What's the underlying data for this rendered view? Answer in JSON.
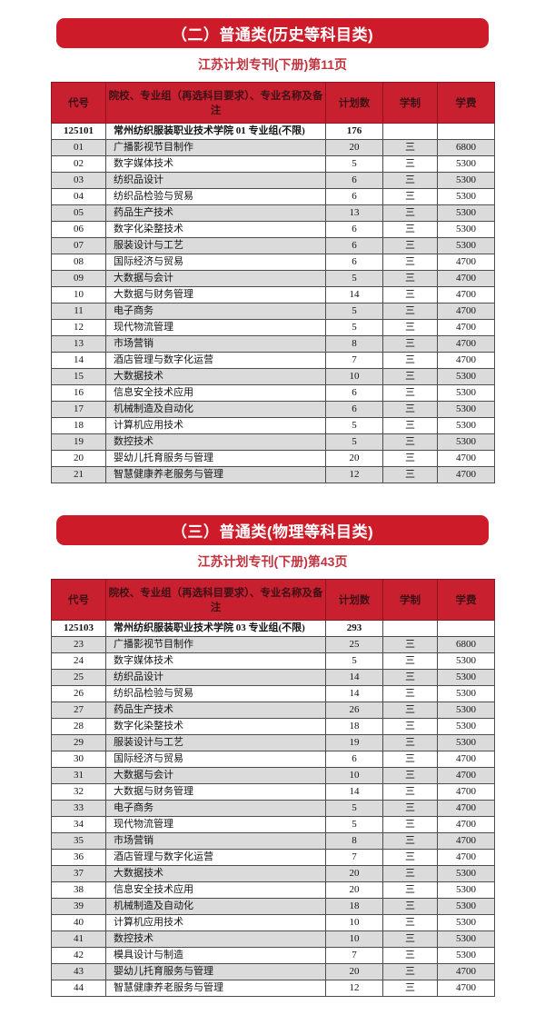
{
  "colors": {
    "banner_red": "#ce1b2a",
    "header_red": "#c8202f",
    "header_text": "#3d1016",
    "subtitle_red": "#c2323e",
    "row_gray": "#dbdbdb",
    "row_white": "#ffffff"
  },
  "sections": [
    {
      "banner": "（二）普通类(历史等科目类)",
      "subtitle": "江苏计划专刊(下册)第11页",
      "columns": [
        "代号",
        "院校、专业组（再选科目要求）、专业名称及备注",
        "计划数",
        "学制",
        "学费"
      ],
      "group_row": {
        "code": "125101",
        "name": "常州纺织服装职业技术学院 01 专业组(不限)",
        "plan": "176",
        "years": "",
        "fee": ""
      },
      "rows": [
        [
          "01",
          "广播影视节目制作",
          "20",
          "三",
          "6800"
        ],
        [
          "02",
          "数字媒体技术",
          "5",
          "三",
          "5300"
        ],
        [
          "03",
          "纺织品设计",
          "6",
          "三",
          "5300"
        ],
        [
          "04",
          "纺织品检验与贸易",
          "6",
          "三",
          "5300"
        ],
        [
          "05",
          "药品生产技术",
          "13",
          "三",
          "5300"
        ],
        [
          "06",
          "数字化染整技术",
          "6",
          "三",
          "5300"
        ],
        [
          "07",
          "服装设计与工艺",
          "6",
          "三",
          "5300"
        ],
        [
          "08",
          "国际经济与贸易",
          "6",
          "三",
          "4700"
        ],
        [
          "09",
          "大数据与会计",
          "5",
          "三",
          "4700"
        ],
        [
          "10",
          "大数据与财务管理",
          "14",
          "三",
          "4700"
        ],
        [
          "11",
          "电子商务",
          "5",
          "三",
          "4700"
        ],
        [
          "12",
          "现代物流管理",
          "5",
          "三",
          "4700"
        ],
        [
          "13",
          "市场营销",
          "8",
          "三",
          "4700"
        ],
        [
          "14",
          "酒店管理与数字化运营",
          "7",
          "三",
          "4700"
        ],
        [
          "15",
          "大数据技术",
          "10",
          "三",
          "5300"
        ],
        [
          "16",
          "信息安全技术应用",
          "6",
          "三",
          "5300"
        ],
        [
          "17",
          "机械制造及自动化",
          "6",
          "三",
          "5300"
        ],
        [
          "18",
          "计算机应用技术",
          "5",
          "三",
          "5300"
        ],
        [
          "19",
          "数控技术",
          "5",
          "三",
          "5300"
        ],
        [
          "20",
          "婴幼儿托育服务与管理",
          "20",
          "三",
          "4700"
        ],
        [
          "21",
          "智慧健康养老服务与管理",
          "12",
          "三",
          "4700"
        ]
      ]
    },
    {
      "banner": "（三）普通类(物理等科目类)",
      "subtitle": "江苏计划专刊(下册)第43页",
      "columns": [
        "代号",
        "院校、专业组（再选科目要求）、专业名称及备注",
        "计划数",
        "学制",
        "学费"
      ],
      "group_row": {
        "code": "125103",
        "name": "常州纺织服装职业技术学院 03 专业组(不限)",
        "plan": "293",
        "years": "",
        "fee": ""
      },
      "rows": [
        [
          "23",
          "广播影视节目制作",
          "25",
          "三",
          "6800"
        ],
        [
          "24",
          "数字媒体技术",
          "5",
          "三",
          "5300"
        ],
        [
          "25",
          "纺织品设计",
          "14",
          "三",
          "5300"
        ],
        [
          "26",
          "纺织品检验与贸易",
          "14",
          "三",
          "5300"
        ],
        [
          "27",
          "药品生产技术",
          "26",
          "三",
          "5300"
        ],
        [
          "28",
          "数字化染整技术",
          "18",
          "三",
          "5300"
        ],
        [
          "29",
          "服装设计与工艺",
          "19",
          "三",
          "5300"
        ],
        [
          "30",
          "国际经济与贸易",
          "6",
          "三",
          "4700"
        ],
        [
          "31",
          "大数据与会计",
          "10",
          "三",
          "4700"
        ],
        [
          "32",
          "大数据与财务管理",
          "14",
          "三",
          "4700"
        ],
        [
          "33",
          "电子商务",
          "5",
          "三",
          "4700"
        ],
        [
          "34",
          "现代物流管理",
          "5",
          "三",
          "4700"
        ],
        [
          "35",
          "市场营销",
          "8",
          "三",
          "4700"
        ],
        [
          "36",
          "酒店管理与数字化运营",
          "7",
          "三",
          "4700"
        ],
        [
          "37",
          "大数据技术",
          "20",
          "三",
          "5300"
        ],
        [
          "38",
          "信息安全技术应用",
          "20",
          "三",
          "5300"
        ],
        [
          "39",
          "机械制造及自动化",
          "18",
          "三",
          "5300"
        ],
        [
          "40",
          "计算机应用技术",
          "10",
          "三",
          "5300"
        ],
        [
          "41",
          "数控技术",
          "10",
          "三",
          "5300"
        ],
        [
          "42",
          "模具设计与制造",
          "7",
          "三",
          "5300"
        ],
        [
          "43",
          "婴幼儿托育服务与管理",
          "20",
          "三",
          "4700"
        ],
        [
          "44",
          "智慧健康养老服务与管理",
          "12",
          "三",
          "4700"
        ]
      ]
    }
  ]
}
